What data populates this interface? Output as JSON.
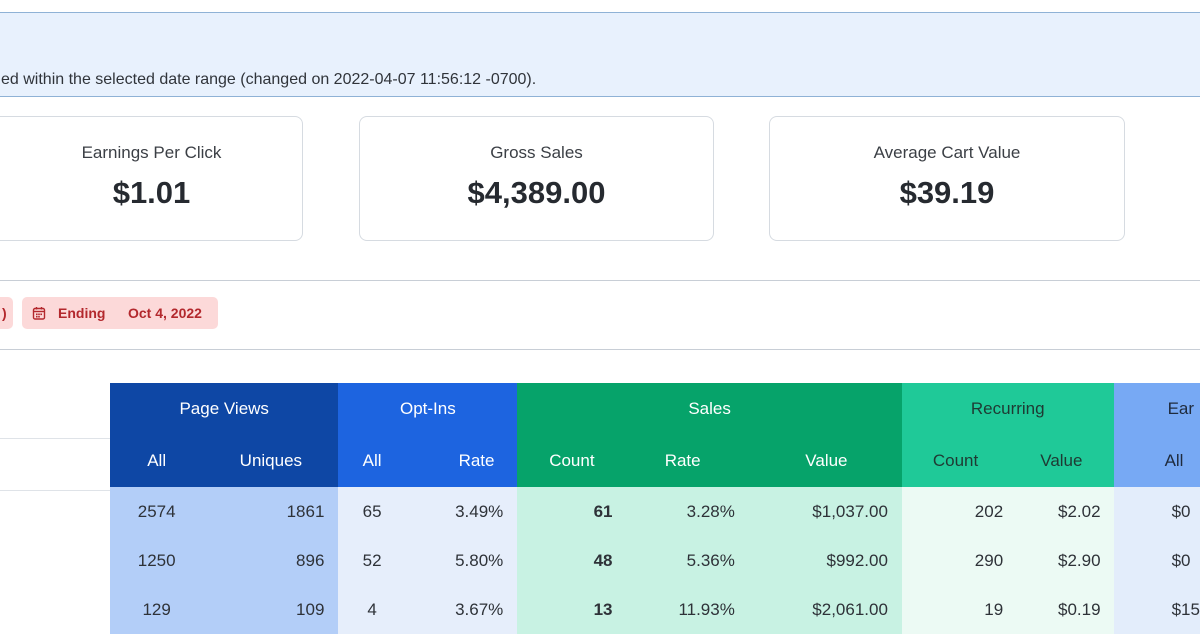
{
  "notice": {
    "text": "ed within the selected date range (changed on 2022-04-07 11:56:12 -0700)."
  },
  "stats": [
    {
      "label": "Earnings Per Click",
      "value": "$1.01"
    },
    {
      "label": "Gross Sales",
      "value": "$4,389.00"
    },
    {
      "label": "Average Cart Value",
      "value": "$39.19"
    }
  ],
  "date_range": {
    "ending_key": "Ending",
    "ending_value": "Oct 4, 2022"
  },
  "colors": {
    "page_views": "#0e47a5",
    "opt_ins": "#1d64e0",
    "sales": "#06a36a",
    "recurring": "#1fc998",
    "earnings": "#77a9f4",
    "badge_text": "#b3282d",
    "link": "#1c66c9"
  },
  "table": {
    "groups": {
      "page_views": "Page Views",
      "opt_ins": "Opt-Ins",
      "sales": "Sales",
      "recurring": "Recurring",
      "earnings": "Ear"
    },
    "subheaders": {
      "pv_all": "All",
      "pv_uniques": "Uniques",
      "oi_all": "All",
      "oi_rate": "Rate",
      "sa_count": "Count",
      "sa_rate": "Rate",
      "sa_value": "Value",
      "re_count": "Count",
      "re_value": "Value",
      "ea_all": "All"
    },
    "rows": [
      {
        "pv_all": "2574",
        "pv_uniques": "1861",
        "oi_all": "65",
        "oi_rate": "3.49%",
        "sa_count": "61",
        "sa_rate": "3.28%",
        "sa_value": "$1,037.00",
        "re_count": "202",
        "re_value": "$2.02",
        "ea_all": "$0"
      },
      {
        "pv_all": "1250",
        "pv_uniques": "896",
        "oi_all": "52",
        "oi_rate": "5.80%",
        "sa_count": "48",
        "sa_rate": "5.36%",
        "sa_value": "$992.00",
        "re_count": "290",
        "re_value": "$2.90",
        "ea_all": "$0"
      },
      {
        "pv_all": "129",
        "pv_uniques": "109",
        "oi_all": "4",
        "oi_rate": "3.67%",
        "sa_count": "13",
        "sa_rate": "11.93%",
        "sa_value": "$2,061.00",
        "re_count": "19",
        "re_value": "$0.19",
        "ea_all": "$15"
      }
    ]
  }
}
